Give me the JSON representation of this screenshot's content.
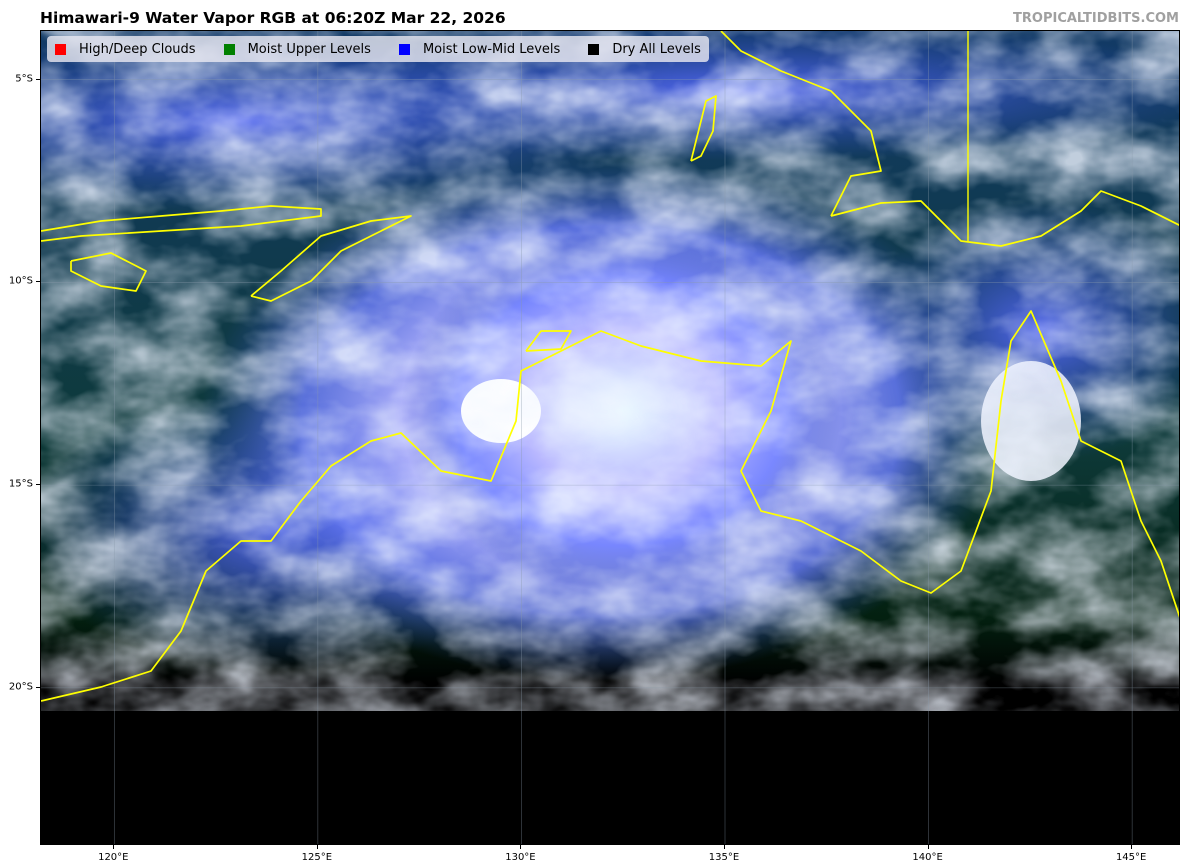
{
  "title": "Himawari-9 Water Vapor RGB at 06:20Z Mar 22, 2026",
  "credit": "TROPICALTIDBITS.COM",
  "legend": [
    {
      "label": "High/Deep Clouds",
      "color": "#ff0000"
    },
    {
      "label": "Moist Upper Levels",
      "color": "#008000"
    },
    {
      "label": "Moist Low-Mid Levels",
      "color": "#0000ff"
    },
    {
      "label": "Dry All Levels",
      "color": "#000000"
    }
  ],
  "map": {
    "extent": {
      "lon": [
        118.2,
        146.2
      ],
      "lat": [
        -3.8,
        -23.9
      ]
    },
    "coastline_color": "#ffff00",
    "x_ticks": [
      {
        "lon": 120,
        "label": "120°E"
      },
      {
        "lon": 125,
        "label": "125°E"
      },
      {
        "lon": 130,
        "label": "130°E"
      },
      {
        "lon": 135,
        "label": "135°E"
      },
      {
        "lon": 140,
        "label": "140°E"
      },
      {
        "lon": 145,
        "label": "145°E"
      }
    ],
    "y_ticks": [
      {
        "lat": -5,
        "label": "5°S"
      },
      {
        "lat": -10,
        "label": "10°S"
      },
      {
        "lat": -15,
        "label": "15°S"
      },
      {
        "lat": -20,
        "label": "20°S"
      }
    ]
  }
}
